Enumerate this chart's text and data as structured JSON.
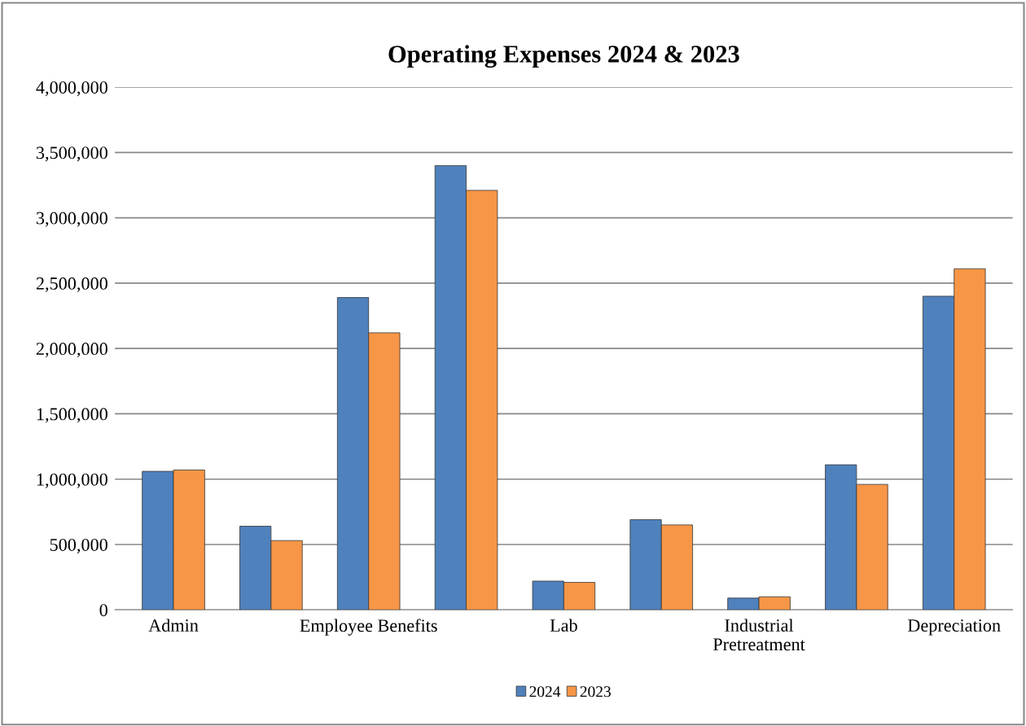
{
  "chart_data": {
    "type": "bar",
    "title": "Operating Expenses 2024 & 2023",
    "categories": [
      "Admin",
      null,
      "Employee Benefits",
      null,
      "Lab",
      null,
      "Industrial\nPretreatment",
      null,
      "Depreciation"
    ],
    "series": [
      {
        "name": "2024",
        "color": "#4f81bd",
        "values": [
          1060000,
          640000,
          2390000,
          3400000,
          220000,
          690000,
          90000,
          1110000,
          2400000
        ]
      },
      {
        "name": "2023",
        "color": "#f79646",
        "values": [
          1070000,
          530000,
          2120000,
          3210000,
          210000,
          650000,
          100000,
          960000,
          2610000
        ]
      }
    ],
    "ylim": [
      0,
      4000000
    ],
    "yticks": [
      {
        "value": 0,
        "label": "0"
      },
      {
        "value": 500000,
        "label": "500,000"
      },
      {
        "value": 1000000,
        "label": "1,000,000"
      },
      {
        "value": 1500000,
        "label": "1,500,000"
      },
      {
        "value": 2000000,
        "label": "2,000,000"
      },
      {
        "value": 2500000,
        "label": "2,500,000"
      },
      {
        "value": 3000000,
        "label": "3,000,000"
      },
      {
        "value": 3500000,
        "label": "3,500,000"
      },
      {
        "value": 4000000,
        "label": "4,000,000"
      }
    ],
    "grid": "y",
    "legend": "bottom"
  }
}
